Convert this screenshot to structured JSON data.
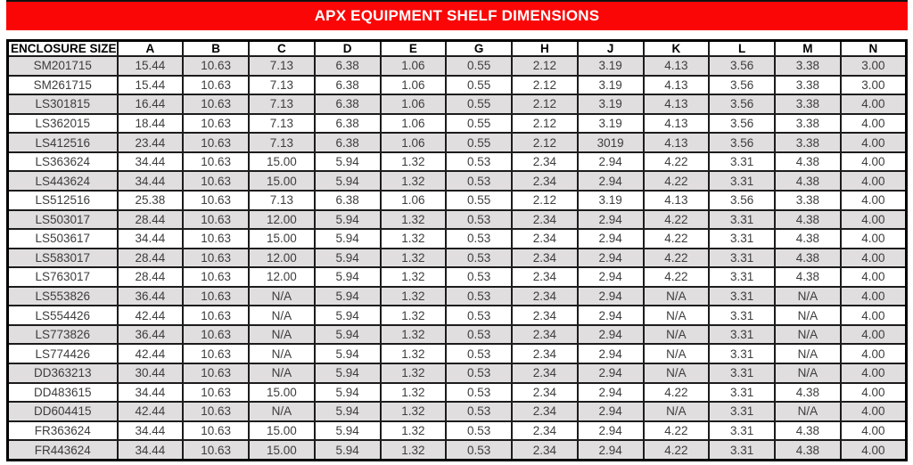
{
  "title": "APX EQUIPMENT SHELF DIMENSIONS",
  "colors": {
    "title_bg": "#fb0606",
    "title_text": "#ffffff",
    "row_alt": "#e0dede",
    "border": "#1c1c1c",
    "cell_text": "#3d3d3d"
  },
  "table": {
    "columns": [
      "ENCLOSURE SIZE",
      "A",
      "B",
      "C",
      "D",
      "E",
      "G",
      "H",
      "J",
      "K",
      "L",
      "M",
      "N"
    ],
    "rows": [
      [
        "SM201715",
        "15.44",
        "10.63",
        "7.13",
        "6.38",
        "1.06",
        "0.55",
        "2.12",
        "3.19",
        "4.13",
        "3.56",
        "3.38",
        "3.00"
      ],
      [
        "SM261715",
        "15.44",
        "10.63",
        "7.13",
        "6.38",
        "1.06",
        "0.55",
        "2.12",
        "3.19",
        "4.13",
        "3.56",
        "3.38",
        "3.00"
      ],
      [
        "LS301815",
        "16.44",
        "10.63",
        "7.13",
        "6.38",
        "1.06",
        "0.55",
        "2.12",
        "3.19",
        "4.13",
        "3.56",
        "3.38",
        "4.00"
      ],
      [
        "LS362015",
        "18.44",
        "10.63",
        "7.13",
        "6.38",
        "1.06",
        "0.55",
        "2.12",
        "3.19",
        "4.13",
        "3.56",
        "3.38",
        "4.00"
      ],
      [
        "LS412516",
        "23.44",
        "10.63",
        "7.13",
        "6.38",
        "1.06",
        "0.55",
        "2.12",
        "3019",
        "4.13",
        "3.56",
        "3.38",
        "4.00"
      ],
      [
        "LS363624",
        "34.44",
        "10.63",
        "15.00",
        "5.94",
        "1.32",
        "0.53",
        "2.34",
        "2.94",
        "4.22",
        "3.31",
        "4.38",
        "4.00"
      ],
      [
        "LS443624",
        "34.44",
        "10.63",
        "15.00",
        "5.94",
        "1.32",
        "0.53",
        "2.34",
        "2.94",
        "4.22",
        "3.31",
        "4.38",
        "4.00"
      ],
      [
        "LS512516",
        "25.38",
        "10.63",
        "7.13",
        "6.38",
        "1.06",
        "0.55",
        "2.12",
        "3.19",
        "4.13",
        "3.56",
        "3.38",
        "4.00"
      ],
      [
        "LS503017",
        "28.44",
        "10.63",
        "12.00",
        "5.94",
        "1.32",
        "0.53",
        "2.34",
        "2.94",
        "4.22",
        "3.31",
        "4.38",
        "4.00"
      ],
      [
        "LS503617",
        "34.44",
        "10.63",
        "15.00",
        "5.94",
        "1.32",
        "0.53",
        "2.34",
        "2.94",
        "4.22",
        "3.31",
        "4.38",
        "4.00"
      ],
      [
        "LS583017",
        "28.44",
        "10.63",
        "12.00",
        "5.94",
        "1.32",
        "0.53",
        "2.34",
        "2.94",
        "4.22",
        "3.31",
        "4.38",
        "4.00"
      ],
      [
        "LS763017",
        "28.44",
        "10.63",
        "12.00",
        "5.94",
        "1.32",
        "0.53",
        "2.34",
        "2.94",
        "4.22",
        "3.31",
        "4.38",
        "4.00"
      ],
      [
        "LS553826",
        "36.44",
        "10.63",
        "N/A",
        "5.94",
        "1.32",
        "0.53",
        "2.34",
        "2.94",
        "N/A",
        "3.31",
        "N/A",
        "4.00"
      ],
      [
        "LS554426",
        "42.44",
        "10.63",
        "N/A",
        "5.94",
        "1.32",
        "0.53",
        "2.34",
        "2.94",
        "N/A",
        "3.31",
        "N/A",
        "4.00"
      ],
      [
        "LS773826",
        "36.44",
        "10.63",
        "N/A",
        "5.94",
        "1.32",
        "0.53",
        "2.34",
        "2.94",
        "N/A",
        "3.31",
        "N/A",
        "4.00"
      ],
      [
        "LS774426",
        "42.44",
        "10.63",
        "N/A",
        "5.94",
        "1.32",
        "0.53",
        "2.34",
        "2.94",
        "N/A",
        "3.31",
        "N/A",
        "4.00"
      ],
      [
        "DD363213",
        "30.44",
        "10.63",
        "N/A",
        "5.94",
        "1.32",
        "0.53",
        "2.34",
        "2.94",
        "N/A",
        "3.31",
        "N/A",
        "4.00"
      ],
      [
        "DD483615",
        "34.44",
        "10.63",
        "15.00",
        "5.94",
        "1.32",
        "0.53",
        "2.34",
        "2.94",
        "4.22",
        "3.31",
        "4.38",
        "4.00"
      ],
      [
        "DD604415",
        "42.44",
        "10.63",
        "N/A",
        "5.94",
        "1.32",
        "0.53",
        "2.34",
        "2.94",
        "N/A",
        "3.31",
        "N/A",
        "4.00"
      ],
      [
        "FR363624",
        "34.44",
        "10.63",
        "15.00",
        "5.94",
        "1.32",
        "0.53",
        "2.34",
        "2.94",
        "4.22",
        "3.31",
        "4.38",
        "4.00"
      ],
      [
        "FR443624",
        "34.44",
        "10.63",
        "15.00",
        "5.94",
        "1.32",
        "0.53",
        "2.34",
        "2.94",
        "4.22",
        "3.31",
        "4.38",
        "4.00"
      ]
    ]
  }
}
